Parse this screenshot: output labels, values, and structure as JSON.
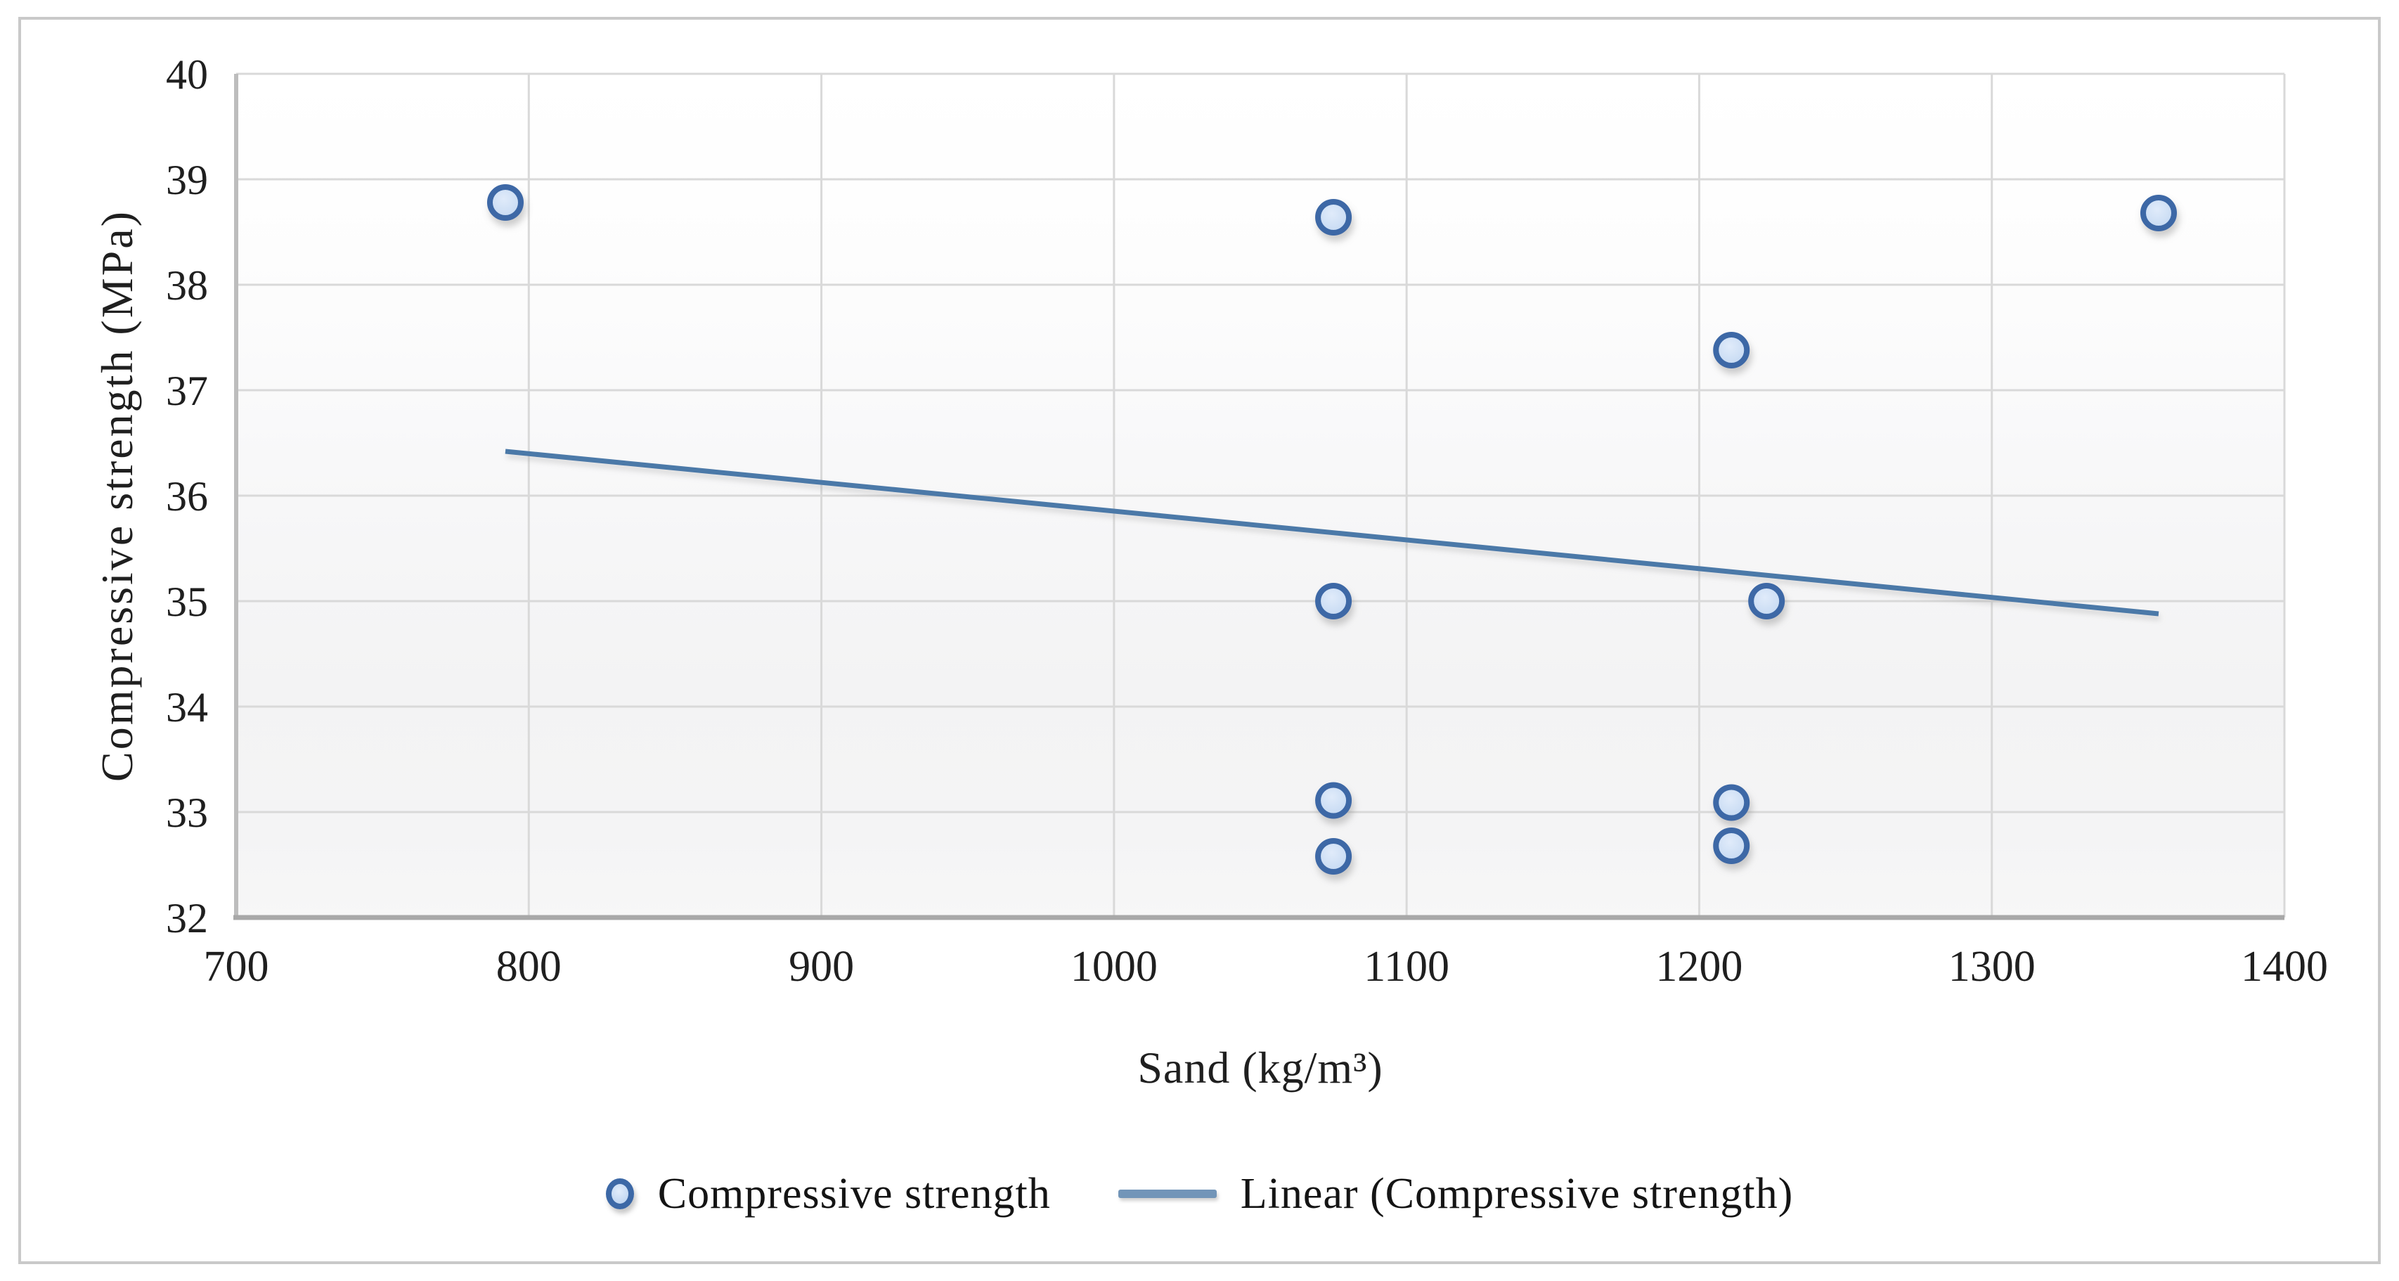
{
  "figure": {
    "background_color": "#ffffff",
    "border_color": "#c9c9c9"
  },
  "chart_data": {
    "type": "scatter",
    "title": "",
    "xlabel": "Sand (kg/m³)",
    "ylabel": "Compressive strength (MPa)",
    "xlim": [
      700,
      1400
    ],
    "ylim": [
      32,
      40
    ],
    "x_ticks": [
      700,
      800,
      900,
      1000,
      1100,
      1200,
      1300,
      1400
    ],
    "y_ticks": [
      40,
      39,
      38,
      37,
      36,
      35,
      34,
      33,
      32
    ],
    "grid": true,
    "legend_position": "bottom",
    "colors": {
      "gridline": "#d9d9d9",
      "axis_line": "#a8a8a8",
      "left_axis_line": "#bdbdbd",
      "marker_fill": "#c5daf3",
      "marker_fill_light": "#e0ebfa",
      "marker_stroke": "#3c68a6",
      "trend_line": "#4c79a8",
      "tick_text": "#1f1f1f"
    },
    "series": [
      {
        "name": "Compressive strength",
        "kind": "scatter",
        "points": [
          [
            792,
            38.78
          ],
          [
            1075,
            38.64
          ],
          [
            1075,
            35.0
          ],
          [
            1075,
            33.11
          ],
          [
            1075,
            32.58
          ],
          [
            1211,
            37.38
          ],
          [
            1211,
            33.09
          ],
          [
            1211,
            32.68
          ],
          [
            1223,
            35.0
          ],
          [
            1357,
            38.68
          ]
        ]
      },
      {
        "name": "Linear (Compressive strength)",
        "kind": "line",
        "points": [
          [
            792,
            36.42
          ],
          [
            1357,
            34.88
          ]
        ]
      }
    ]
  },
  "legend": {
    "items": [
      {
        "label": "Compressive strength",
        "marker": "circle-marker-icon"
      },
      {
        "label": "Linear (Compressive strength)",
        "marker": "line-marker-icon"
      }
    ]
  }
}
